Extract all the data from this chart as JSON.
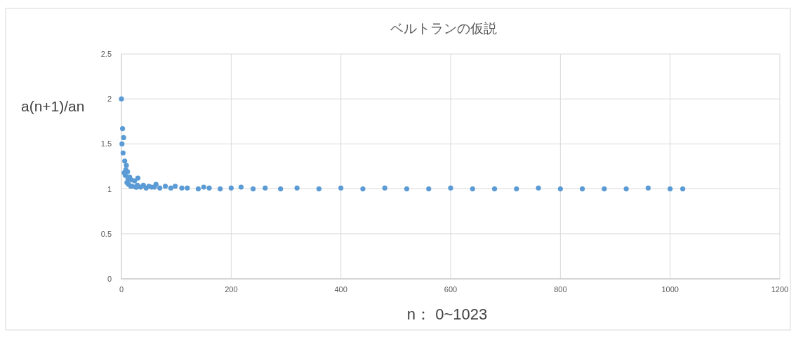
{
  "chart_data": {
    "type": "scatter",
    "title": "ベルトランの仮説",
    "xlabel": "n： 0~1023",
    "ylabel": "a(n+1)/an",
    "xlim": [
      0,
      1200
    ],
    "ylim": [
      0,
      2.5
    ],
    "xticks": [
      0,
      200,
      400,
      600,
      800,
      1000,
      1200
    ],
    "yticks": [
      0,
      0.5,
      1,
      1.5,
      2,
      2.5
    ],
    "grid": true,
    "marker": "circle",
    "x": [
      0,
      1,
      2,
      3,
      4,
      5,
      6,
      7,
      8,
      9,
      10,
      11,
      12,
      13,
      15,
      17,
      18,
      20,
      24,
      26,
      28,
      29,
      30,
      35,
      40,
      45,
      50,
      55,
      60,
      63,
      70,
      80,
      90,
      98,
      110,
      120,
      140,
      150,
      160,
      180,
      200,
      218,
      240,
      262,
      290,
      320,
      360,
      400,
      440,
      480,
      520,
      560,
      600,
      640,
      680,
      720,
      760,
      800,
      840,
      880,
      920,
      960,
      1000,
      1023
    ],
    "series": [
      {
        "color": "#5b9bd5",
        "values": [
          2,
          1.5,
          1.67,
          1.4,
          1.57,
          1.18,
          1.31,
          1.15,
          1.21,
          1.26,
          1.07,
          1.19,
          1.11,
          1.05,
          1.13,
          1.03,
          1.1,
          1.03,
          1.09,
          1.02,
          1.02,
          1.04,
          1.12,
          1.02,
          1.04,
          1.01,
          1.03,
          1.02,
          1.02,
          1.05,
          1.01,
          1.03,
          1.01,
          1.03,
          1.01,
          1.01,
          1,
          1.02,
          1.01,
          1,
          1.01,
          1.02,
          1,
          1.01,
          1,
          1.01,
          1,
          1.01,
          1,
          1.01,
          1,
          1,
          1.01,
          1,
          1,
          1,
          1.01,
          1,
          1,
          1,
          1,
          1.01,
          1,
          1
        ]
      }
    ]
  }
}
